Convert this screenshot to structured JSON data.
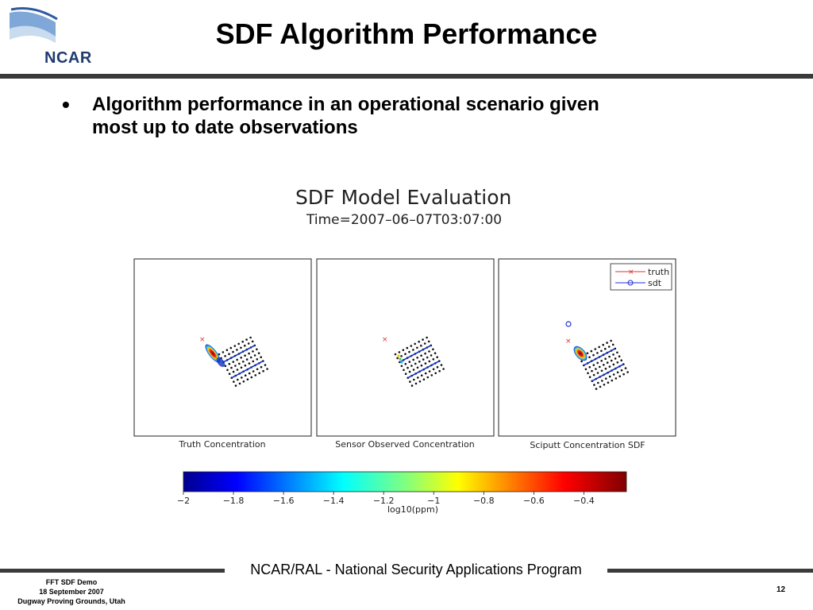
{
  "logo": {
    "text": "NCAR",
    "icon": "ncar-swoosh-icon"
  },
  "title": "SDF Algorithm Performance",
  "bullet": {
    "line1": "Algorithm performance in an operational scenario given",
    "line2": "most up to date observations"
  },
  "figure": {
    "title": "SDF Model Evaluation",
    "time": "Time=2007–06–07T03:07:00",
    "panels": [
      {
        "label": "Truth Concentration"
      },
      {
        "label": "Sensor Observed Concentration"
      },
      {
        "label": "Sciputt Concentration SDF"
      }
    ],
    "legend": {
      "items": [
        {
          "label": "truth",
          "color": "#e03030"
        },
        {
          "label": "sdt",
          "color": "#2030d0"
        }
      ]
    },
    "colorbar": {
      "ticks": [
        "−2",
        "−1.8",
        "−1.6",
        "−1.4",
        "−1.2",
        "−1",
        "−0.8",
        "−0.6",
        "−0.4"
      ],
      "tick_values": [
        -2,
        -1.8,
        -1.6,
        -1.4,
        -1.2,
        -1,
        -0.8,
        -0.6,
        -0.4
      ],
      "range": [
        -2,
        -0.23
      ],
      "label": "log10(ppm)",
      "colormap": "jet"
    }
  },
  "footer": {
    "center": "NCAR/RAL - National Security Applications Program",
    "left_line1": "FFT SDF Demo",
    "left_line2": "18 September 2007",
    "left_line3": "Dugway Proving Grounds, Utah",
    "page": "12"
  }
}
